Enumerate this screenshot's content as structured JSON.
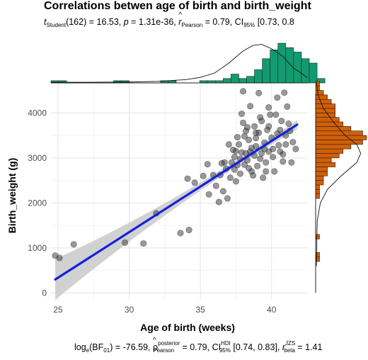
{
  "chart_data": {
    "type": "scatter",
    "title": "Correlations betwen age of birth and birth_weight",
    "subtitle": {
      "t_label": "t",
      "t_sub": "Student",
      "t_df": "(162) = 16.53, ",
      "p_label": "p",
      "p_value": " = 1.31e-36, ",
      "r_label": "r",
      "r_sub": "Pearson",
      "r_value": " = 0.79, CI",
      "ci_sub": "95%",
      "ci_value": " [0.73, 0.8"
    },
    "caption": {
      "bf_label": "log",
      "bf_sub": "e",
      "bf_part": "(BF",
      "bf_sub2": "01",
      "bf_value": ") = -76.59, ",
      "rho_label": "ρ",
      "rho_sup": "posterior",
      "rho_sub": "Pearson",
      "rho_value": " = 0.79, CI",
      "hdi_sup": "HDI",
      "hdi_sub": "95%",
      "hdi_value": " [0.74, 0.83], ",
      "r_label": "r",
      "r_sup": "JZS",
      "r_sub": "beta",
      "r_value": " = 1.41"
    },
    "xlabel": "Age of birth (weeks)",
    "ylabel": "Birth_weight (g)",
    "xlim": [
      24.5,
      42.5
    ],
    "ylim": [
      -150,
      4650
    ],
    "xticks": [
      25,
      30,
      35,
      40
    ],
    "yticks": [
      0,
      1000,
      2000,
      3000,
      4000
    ],
    "grid": true,
    "regression": {
      "x_start": 24.8,
      "x_end": 41.8,
      "y_start": 300,
      "y_end": 3740
    },
    "colors": {
      "points": "#333333",
      "line": "#1122dd",
      "band": "#cccccc",
      "top_hist": "#129b6f",
      "right_hist": "#d25f06"
    },
    "points": [
      [
        24.8,
        830
      ],
      [
        25.1,
        780
      ],
      [
        26.1,
        1080
      ],
      [
        29.7,
        1120
      ],
      [
        31.0,
        1100
      ],
      [
        31.9,
        1770
      ],
      [
        33.6,
        1330
      ],
      [
        34.2,
        1400
      ],
      [
        34.1,
        2540
      ],
      [
        34.6,
        2450
      ],
      [
        35.2,
        2600
      ],
      [
        35.9,
        2620
      ],
      [
        35.6,
        2190
      ],
      [
        36.1,
        2380
      ],
      [
        36.3,
        2020
      ],
      [
        36.6,
        2260
      ],
      [
        36.9,
        2100
      ],
      [
        37.1,
        2560
      ],
      [
        36.4,
        2620
      ],
      [
        37.2,
        2900
      ],
      [
        37.3,
        3180
      ],
      [
        37.4,
        3020
      ],
      [
        37.6,
        2840
      ],
      [
        37.7,
        3300
      ],
      [
        37.8,
        2650
      ],
      [
        37.9,
        3120
      ],
      [
        38.1,
        3480
      ],
      [
        38.2,
        3600
      ],
      [
        38.3,
        2950
      ],
      [
        38.0,
        3780
      ],
      [
        38.4,
        3400
      ],
      [
        38.5,
        3140
      ],
      [
        38.6,
        2700
      ],
      [
        38.8,
        3050
      ],
      [
        38.9,
        3260
      ],
      [
        39.0,
        2820
      ],
      [
        39.1,
        3560
      ],
      [
        39.2,
        3900
      ],
      [
        39.3,
        3100
      ],
      [
        39.5,
        3340
      ],
      [
        39.6,
        2900
      ],
      [
        39.8,
        3700
      ],
      [
        40.0,
        3450
      ],
      [
        40.1,
        3200
      ],
      [
        40.3,
        3960
      ],
      [
        40.5,
        3280
      ],
      [
        40.6,
        3620
      ],
      [
        40.8,
        3080
      ],
      [
        41.0,
        3500
      ],
      [
        41.2,
        3760
      ],
      [
        41.5,
        3350
      ],
      [
        41.7,
        3200
      ],
      [
        38.0,
        4480
      ],
      [
        39.1,
        4440
      ],
      [
        40.4,
        4340
      ],
      [
        40.9,
        4450
      ],
      [
        41.1,
        4140
      ],
      [
        39.8,
        4120
      ],
      [
        38.5,
        4150
      ],
      [
        37.9,
        3980
      ],
      [
        37.5,
        2480
      ],
      [
        38.7,
        2610
      ],
      [
        39.4,
        2560
      ],
      [
        40.2,
        2700
      ],
      [
        41.4,
        2900
      ],
      [
        36.8,
        2760
      ],
      [
        37.0,
        3300
      ],
      [
        38.3,
        3680
      ],
      [
        39.7,
        3620
      ],
      [
        40.7,
        3820
      ],
      [
        39.9,
        3960
      ],
      [
        38.9,
        3440
      ],
      [
        38.6,
        3220
      ],
      [
        37.8,
        2980
      ],
      [
        38.1,
        2850
      ],
      [
        39.2,
        2980
      ],
      [
        40.1,
        3020
      ],
      [
        40.6,
        3140
      ],
      [
        39.5,
        3200
      ],
      [
        38.2,
        3100
      ],
      [
        37.5,
        3150
      ],
      [
        36.7,
        2900
      ],
      [
        38.8,
        3700
      ],
      [
        39.3,
        3820
      ],
      [
        40.4,
        3540
      ],
      [
        41.0,
        3300
      ],
      [
        41.3,
        3600
      ],
      [
        38.4,
        2770
      ],
      [
        39.6,
        2700
      ],
      [
        40.8,
        2920
      ],
      [
        37.4,
        2740
      ],
      [
        36.5,
        2880
      ],
      [
        35.5,
        2860
      ],
      [
        37.6,
        3460
      ],
      [
        38.9,
        3560
      ],
      [
        39.8,
        3140
      ]
    ],
    "top_hist": {
      "x_start": 24.5,
      "bin_width": 0.55,
      "counts": [
        1,
        1,
        0,
        0,
        0,
        0,
        0,
        0,
        1,
        1,
        0,
        0,
        0,
        0,
        1,
        1,
        0,
        0,
        0,
        1,
        1,
        1,
        2,
        4,
        2,
        3,
        6,
        11,
        15,
        18,
        16,
        14,
        11,
        9,
        2
      ],
      "density_x": [
        24.5,
        27,
        30,
        32,
        34,
        35,
        36,
        37,
        38,
        38.7,
        39.3,
        40,
        40.8,
        41.5,
        42.5
      ],
      "density_y": [
        0.3,
        0.3,
        0.4,
        0.7,
        1.5,
        2.5,
        4.5,
        9,
        14.5,
        17,
        17.5,
        15.5,
        12,
        7,
        2.5
      ]
    },
    "right_hist": {
      "y_start": 700,
      "bin_width": 100,
      "counts": [
        1,
        1,
        0,
        0,
        0,
        1,
        0,
        0,
        0,
        0,
        0,
        0,
        0,
        0,
        1,
        1,
        1,
        2,
        2,
        3,
        3,
        5,
        4,
        6,
        7,
        9,
        12,
        13,
        12,
        9,
        7,
        6,
        5,
        5,
        5,
        4,
        3,
        2,
        1,
        1
      ],
      "density_y": [
        600,
        900,
        1200,
        1600,
        2000,
        2300,
        2600,
        2900,
        3100,
        3300,
        3500,
        3800,
        4100,
        4400,
        4700
      ],
      "density_x": [
        0.2,
        0.3,
        0.3,
        0.4,
        1.2,
        3,
        6.5,
        10.5,
        11.5,
        10.5,
        7.5,
        4.5,
        2,
        0.6,
        0.2
      ]
    }
  }
}
